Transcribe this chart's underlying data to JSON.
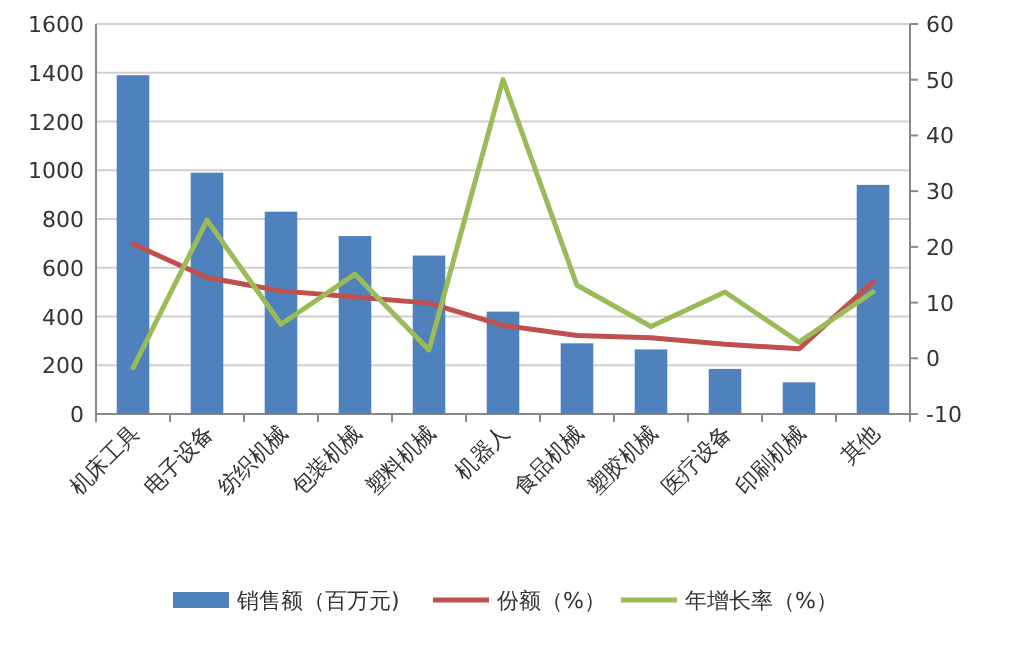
{
  "chart_data": {
    "type": "bar",
    "categories": [
      "机床工具",
      "电子设备",
      "纺织机械",
      "包装机械",
      "塑料机械",
      "机器人",
      "食品机械",
      "塑胶机械",
      "医疗设备",
      "印刷机械",
      "其他"
    ],
    "series": [
      {
        "name": "销售额（百万元)",
        "color": "#4f81bd",
        "values": [
          1390,
          990,
          830,
          730,
          650,
          420,
          290,
          265,
          185,
          130,
          940
        ]
      },
      {
        "name": "份额（%）",
        "type": "line",
        "axis": "y2",
        "color": "#c0504d",
        "values": [
          20.5,
          14.5,
          12.1,
          11,
          9.9,
          5.9,
          4.1,
          3.7,
          2.5,
          1.7,
          13.7
        ]
      },
      {
        "name": "年增长率（%）",
        "type": "line",
        "axis": "y2",
        "color": "#9bbb59",
        "values": [
          -1.7,
          24.8,
          6.1,
          15.1,
          1.5,
          50,
          13.1,
          5.7,
          11.9,
          2.9,
          11.9
        ]
      }
    ],
    "ylim": [
      0,
      1600
    ],
    "yticks": [
      0,
      200,
      400,
      600,
      800,
      1000,
      1200,
      1400,
      1600
    ],
    "y2lim": [
      -10,
      60
    ],
    "y2ticks": [
      -10,
      0,
      10,
      20,
      30,
      40,
      50,
      60
    ],
    "grid": "y",
    "legend": "bottom",
    "marker": "none"
  }
}
